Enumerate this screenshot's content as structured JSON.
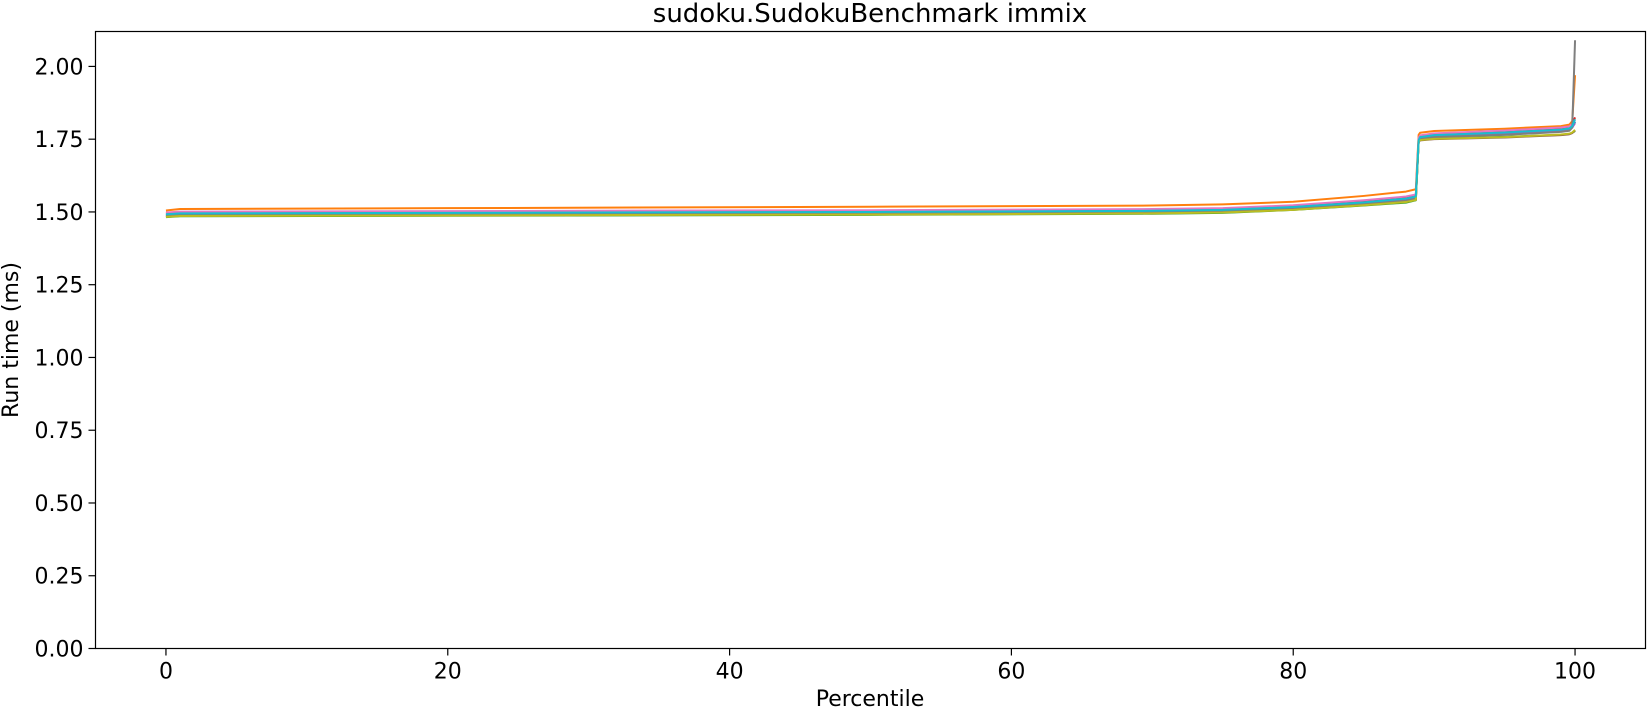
{
  "chart_data": {
    "type": "line",
    "title": "sudoku.SudokuBenchmark immix",
    "xlabel": "Percentile",
    "ylabel": "Run time (ms)",
    "xlim": [
      -5,
      105
    ],
    "ylim": [
      0,
      2.12
    ],
    "xticks": [
      0,
      20,
      40,
      60,
      80,
      100
    ],
    "yticks": [
      "0.00",
      "0.25",
      "0.50",
      "0.75",
      "1.00",
      "1.25",
      "1.50",
      "1.75",
      "2.00"
    ],
    "grid": false,
    "legend": "none",
    "series": [
      {
        "color": "#1f77b4",
        "x": [
          0,
          1,
          20,
          50,
          70,
          75,
          80,
          85,
          88,
          88.7,
          88.9,
          89,
          90,
          95,
          99,
          99.6,
          99.8,
          100
        ],
        "y": [
          1.49,
          1.493,
          1.495,
          1.498,
          1.502,
          1.505,
          1.515,
          1.53,
          1.545,
          1.555,
          1.74,
          1.752,
          1.76,
          1.77,
          1.778,
          1.782,
          1.79,
          1.81
        ]
      },
      {
        "color": "#ff7f0e",
        "x": [
          0,
          1,
          20,
          50,
          70,
          75,
          80,
          85,
          88,
          88.7,
          88.9,
          89,
          90,
          95,
          99,
          99.6,
          99.8,
          100
        ],
        "y": [
          1.505,
          1.51,
          1.513,
          1.518,
          1.522,
          1.526,
          1.535,
          1.555,
          1.57,
          1.578,
          1.765,
          1.772,
          1.778,
          1.786,
          1.795,
          1.8,
          1.812,
          1.97
        ]
      },
      {
        "color": "#2ca02c",
        "x": [
          0,
          1,
          20,
          50,
          70,
          75,
          80,
          85,
          88,
          88.7,
          88.9,
          89,
          90,
          95,
          99,
          99.6,
          99.8,
          100
        ],
        "y": [
          1.482,
          1.485,
          1.487,
          1.49,
          1.494,
          1.497,
          1.507,
          1.522,
          1.532,
          1.54,
          1.742,
          1.748,
          1.752,
          1.758,
          1.765,
          1.768,
          1.772,
          1.778
        ]
      },
      {
        "color": "#d62728",
        "x": [
          0,
          1,
          20,
          50,
          70,
          75,
          80,
          85,
          88,
          88.7,
          88.9,
          89,
          90,
          95,
          99,
          99.6,
          99.8,
          100
        ],
        "y": [
          1.495,
          1.498,
          1.5,
          1.503,
          1.507,
          1.51,
          1.52,
          1.537,
          1.55,
          1.558,
          1.75,
          1.76,
          1.768,
          1.778,
          1.788,
          1.792,
          1.8,
          1.825
        ]
      },
      {
        "color": "#9467bd",
        "x": [
          0,
          1,
          20,
          50,
          70,
          75,
          80,
          85,
          88,
          88.7,
          88.9,
          89,
          90,
          95,
          99,
          99.6,
          99.8,
          100
        ],
        "y": [
          1.488,
          1.491,
          1.493,
          1.496,
          1.5,
          1.503,
          1.512,
          1.528,
          1.54,
          1.548,
          1.745,
          1.755,
          1.762,
          1.77,
          1.78,
          1.784,
          1.79,
          1.805
        ]
      },
      {
        "color": "#8c564b",
        "x": [
          0,
          1,
          20,
          50,
          70,
          75,
          80,
          85,
          88,
          88.7,
          88.9,
          89,
          90,
          95,
          99,
          99.6,
          99.8,
          100
        ],
        "y": [
          1.484,
          1.487,
          1.489,
          1.492,
          1.496,
          1.499,
          1.508,
          1.524,
          1.535,
          1.542,
          1.74,
          1.746,
          1.75,
          1.756,
          1.764,
          1.767,
          1.771,
          1.78
        ]
      },
      {
        "color": "#e377c2",
        "x": [
          0,
          1,
          20,
          50,
          70,
          75,
          80,
          85,
          88,
          88.7,
          88.9,
          89,
          90,
          95,
          99,
          99.6,
          99.8,
          100
        ],
        "y": [
          1.498,
          1.501,
          1.503,
          1.506,
          1.51,
          1.513,
          1.523,
          1.54,
          1.553,
          1.56,
          1.755,
          1.763,
          1.77,
          1.78,
          1.79,
          1.794,
          1.802,
          1.815
        ]
      },
      {
        "color": "#7f7f7f",
        "x": [
          0,
          1,
          20,
          50,
          70,
          75,
          80,
          85,
          88,
          88.7,
          88.9,
          89,
          90,
          95,
          99,
          99.6,
          99.8,
          100
        ],
        "y": [
          1.487,
          1.49,
          1.492,
          1.495,
          1.499,
          1.502,
          1.511,
          1.527,
          1.538,
          1.546,
          1.743,
          1.75,
          1.757,
          1.765,
          1.775,
          1.779,
          1.79,
          2.09
        ]
      },
      {
        "color": "#bcbd22",
        "x": [
          0,
          1,
          20,
          50,
          70,
          75,
          80,
          85,
          88,
          88.7,
          88.9,
          89,
          90,
          95,
          99,
          99.6,
          99.8,
          100
        ],
        "y": [
          1.483,
          1.486,
          1.488,
          1.491,
          1.495,
          1.498,
          1.507,
          1.523,
          1.534,
          1.541,
          1.741,
          1.747,
          1.751,
          1.757,
          1.766,
          1.769,
          1.773,
          1.782
        ]
      },
      {
        "color": "#17becf",
        "x": [
          0,
          1,
          20,
          50,
          70,
          75,
          80,
          85,
          88,
          88.7,
          88.9,
          89,
          90,
          95,
          99,
          99.6,
          99.8,
          100
        ],
        "y": [
          1.492,
          1.495,
          1.497,
          1.5,
          1.504,
          1.507,
          1.517,
          1.533,
          1.546,
          1.553,
          1.746,
          1.757,
          1.764,
          1.773,
          1.783,
          1.787,
          1.795,
          1.818
        ]
      }
    ]
  }
}
